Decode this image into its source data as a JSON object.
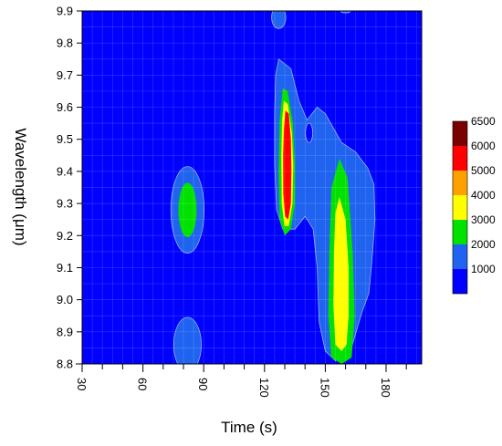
{
  "chart_data": {
    "type": "heatmap",
    "xlabel": "Time (s)",
    "ylabel": "Wavelength (μm)",
    "xlim": [
      30,
      200
    ],
    "ylim": [
      8.8,
      9.9
    ],
    "x_ticks": [
      30,
      60,
      90,
      120,
      150,
      180
    ],
    "y_ticks": [
      8.8,
      8.9,
      9.0,
      9.1,
      9.2,
      9.3,
      9.4,
      9.5,
      9.6,
      9.7,
      9.8,
      9.9
    ],
    "x_tick_labels": [
      "30",
      "60",
      "90",
      "120",
      "150",
      "180"
    ],
    "y_tick_labels": [
      "8.8",
      "8.9",
      "9.0",
      "9.1",
      "9.2",
      "9.3",
      "9.4",
      "9.5",
      "9.6",
      "9.7",
      "9.8",
      "9.9"
    ],
    "colorbar": {
      "levels": [
        {
          "min": 0,
          "max": 1000,
          "color": "#0000ff"
        },
        {
          "min": 1000,
          "max": 2000,
          "color": "#1f63f0"
        },
        {
          "min": 2000,
          "max": 3000,
          "color": "#00e100"
        },
        {
          "min": 3000,
          "max": 4000,
          "color": "#ffff00"
        },
        {
          "min": 4000,
          "max": 5000,
          "color": "#ffa000"
        },
        {
          "min": 5000,
          "max": 6000,
          "color": "#ff0000"
        },
        {
          "min": 6000,
          "max": 6500,
          "color": "#7a0000"
        }
      ],
      "tick_labels": [
        "1000",
        "2000",
        "3000",
        "4000",
        "5000",
        "6000",
        "6500"
      ]
    },
    "features": [
      {
        "x": 82,
        "y": 9.28,
        "peak_level": "2000-3000"
      },
      {
        "x": 82,
        "y": 8.86,
        "peak_level": "1000-2000"
      },
      {
        "x": 131,
        "y": 9.42,
        "peak_level": "5000-6000"
      },
      {
        "x": 140,
        "y": 9.5,
        "peak_level": "1000-2000"
      },
      {
        "x": 157,
        "y": 9.1,
        "peak_level": "3000-4000"
      },
      {
        "x": 127,
        "y": 9.88,
        "peak_level": "1000-2000"
      }
    ],
    "grid": true
  }
}
